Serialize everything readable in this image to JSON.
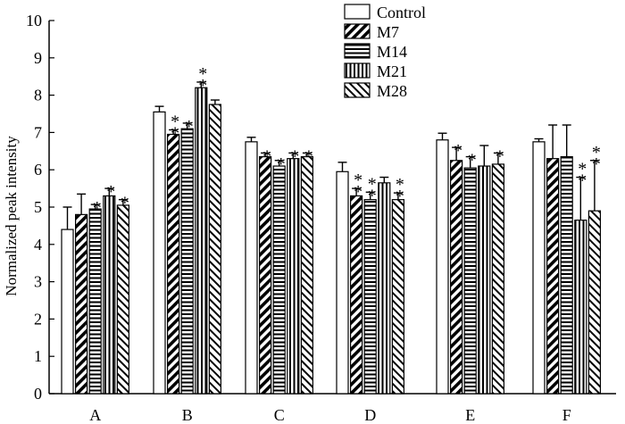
{
  "chart_data": {
    "type": "bar",
    "title": "",
    "xlabel": "",
    "ylabel": "Normalized peak intensity",
    "ylim": [
      0,
      10
    ],
    "yticks": [
      0,
      1,
      2,
      3,
      4,
      5,
      6,
      7,
      8,
      9,
      10
    ],
    "grid": false,
    "legend_position": "top-right",
    "categories": [
      "A",
      "B",
      "C",
      "D",
      "E",
      "F"
    ],
    "series": [
      {
        "name": "Control",
        "pattern": "white",
        "values": [
          4.4,
          7.55,
          6.75,
          5.95,
          6.8,
          6.75
        ],
        "errors": [
          0.6,
          0.15,
          0.12,
          0.25,
          0.18,
          0.08
        ],
        "sig": [
          0,
          0,
          0,
          0,
          0,
          0
        ]
      },
      {
        "name": "M7",
        "pattern": "diag-thick",
        "values": [
          4.8,
          6.95,
          6.35,
          5.3,
          6.25,
          6.3
        ],
        "errors": [
          0.55,
          0.12,
          0.1,
          0.2,
          0.35,
          0.9
        ],
        "sig": [
          0,
          2,
          1,
          2,
          1,
          0
        ]
      },
      {
        "name": "M14",
        "pattern": "horizontal",
        "values": [
          4.95,
          7.1,
          6.1,
          5.2,
          6.05,
          6.35
        ],
        "errors": [
          0.12,
          0.15,
          0.15,
          0.2,
          0.3,
          0.85
        ],
        "sig": [
          1,
          1,
          1,
          2,
          1,
          0
        ]
      },
      {
        "name": "M21",
        "pattern": "vertical",
        "values": [
          5.3,
          8.2,
          6.3,
          5.65,
          6.1,
          4.65
        ],
        "errors": [
          0.2,
          0.15,
          0.15,
          0.15,
          0.55,
          1.15
        ],
        "sig": [
          1,
          2,
          1,
          0,
          0,
          2
        ]
      },
      {
        "name": "M28",
        "pattern": "diag-thin",
        "values": [
          5.05,
          7.75,
          6.35,
          5.2,
          6.15,
          4.9
        ],
        "errors": [
          0.15,
          0.12,
          0.1,
          0.18,
          0.3,
          1.35
        ],
        "sig": [
          1,
          0,
          1,
          2,
          1,
          2
        ]
      }
    ],
    "significance_marker": "*"
  }
}
